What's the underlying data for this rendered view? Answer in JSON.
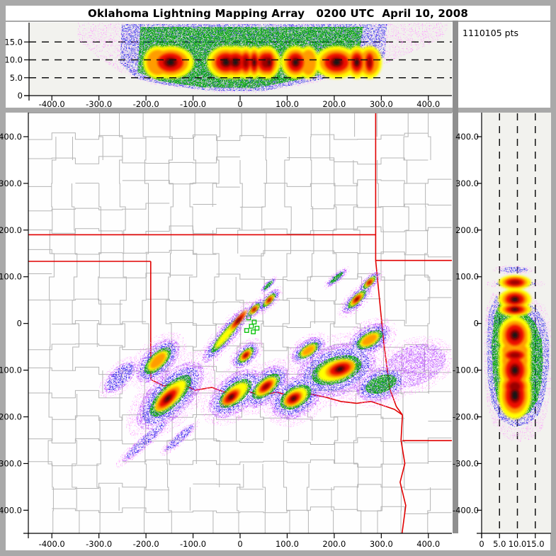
{
  "title": "Oklahoma Lightning Mapping Array   0200 UTC  April 10, 2008",
  "points_label": "1110105 pts",
  "axes": {
    "east_west_km": {
      "ticks": [
        -400,
        -300,
        -200,
        -100,
        0,
        100,
        200,
        300,
        400
      ],
      "labels": [
        "-400.0",
        "-300.0",
        "-200.0",
        "-100.0",
        "0",
        "100.0",
        "200.0",
        "300.0",
        "400.0"
      ]
    },
    "north_south_km": {
      "ticks": [
        -400,
        -300,
        -200,
        -100,
        0,
        100,
        200,
        300,
        400
      ],
      "labels": [
        "-400.0",
        "-300.0",
        "-200.0",
        "-100.0",
        "0",
        "100.0",
        "200.0",
        "300.0",
        "400.0"
      ]
    },
    "altitude_km": {
      "ticks": [
        0,
        5,
        10,
        15
      ],
      "labels": [
        "0",
        "5.0",
        "10.0",
        "15.0"
      ]
    }
  },
  "chart_data": {
    "type": "heatmap",
    "title": "Oklahoma Lightning Mapping Array   0200 UTC  April 10, 2008",
    "total_points": 1110105,
    "layout": "three linked panels: top = altitude vs east-west, main = plan view map with county and state borders, right = north-south vs altitude",
    "axis_ranges": {
      "east_west_km": [
        -450,
        450
      ],
      "north_south_km": [
        -450,
        450
      ],
      "altitude_km": [
        0,
        20
      ]
    },
    "grid": "dashed reference lines at 5, 10, 15 km altitude in cross-section panels",
    "color_scale_low_to_high": [
      "#ff9bff",
      "#b44cff",
      "#2b2bea",
      "#00a800",
      "#ffff00",
      "#ff9c00",
      "#ee1000",
      "#990000",
      "#141414"
    ],
    "colors": {
      "state_border": "#e10000",
      "county_line": "#b5b5b5",
      "station_marker": "#00c000",
      "panel_bg": "#f2f2ee",
      "map_bg": "#fefefe"
    },
    "cells_format": "[east_km, north_km, orientation_deg, length_km, width_km, intensity_1to9, core_offset_frac]",
    "cells": [
      [
        -175,
        -80,
        45,
        100,
        46,
        6,
        0
      ],
      [
        -148,
        -155,
        45,
        160,
        62,
        9,
        -0.05
      ],
      [
        -30,
        -25,
        50,
        130,
        26,
        9,
        0.32
      ],
      [
        30,
        30,
        45,
        48,
        17,
        9,
        0
      ],
      [
        62,
        50,
        48,
        52,
        18,
        9,
        0
      ],
      [
        -10,
        -150,
        40,
        115,
        55,
        9,
        -0.1
      ],
      [
        55,
        -135,
        40,
        100,
        48,
        8,
        0
      ],
      [
        118,
        -158,
        32,
        100,
        60,
        9,
        -0.05
      ],
      [
        205,
        -100,
        18,
        150,
        78,
        9,
        0.05
      ],
      [
        248,
        52,
        45,
        72,
        23,
        9,
        0
      ],
      [
        275,
        88,
        45,
        50,
        18,
        8,
        0
      ],
      [
        300,
        -130,
        20,
        95,
        50,
        4,
        0
      ],
      [
        205,
        98,
        40,
        48,
        12,
        4,
        0
      ],
      [
        60,
        82,
        45,
        36,
        10,
        4,
        0
      ],
      [
        -200,
        -250,
        42,
        115,
        16,
        3,
        0
      ],
      [
        -128,
        -245,
        42,
        75,
        14,
        3,
        0
      ],
      [
        275,
        -35,
        30,
        85,
        42,
        6,
        0
      ],
      [
        12,
        -68,
        45,
        60,
        28,
        8,
        0
      ],
      [
        -255,
        -115,
        45,
        75,
        30,
        3,
        0
      ],
      [
        370,
        -90,
        20,
        120,
        60,
        2,
        0
      ],
      [
        145,
        -58,
        35,
        70,
        32,
        6,
        0
      ]
    ],
    "state_borders_km": {
      "kansas_south": [
        [
          -450,
          190
        ],
        [
          288,
          190
        ]
      ],
      "panhandle_south": [
        [
          -450,
          133
        ],
        [
          -190,
          133
        ]
      ],
      "meridian_100w": [
        [
          -190,
          133
        ],
        [
          -190,
          -120
        ]
      ],
      "red_river": [
        [
          -190,
          -120
        ],
        [
          -162,
          -134
        ],
        [
          -128,
          -127
        ],
        [
          -96,
          -143
        ],
        [
          -60,
          -137
        ],
        [
          -28,
          -149
        ],
        [
          8,
          -142
        ],
        [
          42,
          -154
        ],
        [
          78,
          -147
        ],
        [
          112,
          -157
        ],
        [
          148,
          -151
        ],
        [
          182,
          -158
        ],
        [
          214,
          -167
        ],
        [
          248,
          -171
        ],
        [
          278,
          -167
        ],
        [
          305,
          -176
        ],
        [
          328,
          -184
        ],
        [
          345,
          -196
        ]
      ],
      "kansas_missouri": [
        [
          288,
          450
        ],
        [
          288,
          135
        ]
      ],
      "missouri_arkansas": [
        [
          288,
          135
        ],
        [
          450,
          135
        ]
      ],
      "oklahoma_arkansas": [
        [
          288,
          135
        ],
        [
          305,
          -40
        ],
        [
          318,
          -140
        ],
        [
          332,
          -178
        ],
        [
          345,
          -196
        ]
      ],
      "texas_arkansas_louisiana": [
        [
          345,
          -196
        ],
        [
          342,
          -250
        ],
        [
          350,
          -300
        ],
        [
          340,
          -340
        ],
        [
          352,
          -390
        ],
        [
          344,
          -450
        ]
      ],
      "arkansas_louisiana": [
        [
          345,
          -251
        ],
        [
          450,
          -251
        ]
      ]
    },
    "lma_stations_km": [
      [
        18,
        12
      ],
      [
        30,
        3
      ],
      [
        24,
        -6
      ],
      [
        14,
        -15
      ],
      [
        28,
        -18
      ],
      [
        36,
        -10
      ]
    ],
    "envelopes": {
      "top": {
        "pink": [
          [
            -345,
            20.3
          ],
          [
            -345,
            15.5
          ],
          [
            -300,
            10.5
          ],
          [
            -250,
            6.2
          ],
          [
            -190,
            3.2
          ],
          [
            -120,
            1.8
          ],
          [
            -40,
            0.8
          ],
          [
            40,
            0.8
          ],
          [
            120,
            2.6
          ],
          [
            200,
            4.6
          ],
          [
            260,
            6.6
          ],
          [
            320,
            9.6
          ],
          [
            380,
            13
          ],
          [
            432,
            16.2
          ],
          [
            445,
            20.3
          ]
        ],
        "blue": [
          [
            -252,
            20
          ],
          [
            -255,
            9
          ],
          [
            -218,
            4.6
          ],
          [
            -150,
            2.8
          ],
          [
            -60,
            1.3
          ],
          [
            50,
            1.3
          ],
          [
            140,
            3.6
          ],
          [
            230,
            6.2
          ],
          [
            285,
            8.2
          ],
          [
            308,
            11
          ],
          [
            312,
            20
          ]
        ],
        "green": [
          [
            -212,
            19.2
          ],
          [
            -218,
            6.6
          ],
          [
            -172,
            4.1
          ],
          [
            -80,
            2.3
          ],
          [
            30,
            2.1
          ],
          [
            120,
            4.3
          ],
          [
            205,
            6.9
          ],
          [
            248,
            8.6
          ],
          [
            262,
            19.2
          ]
        ]
      },
      "right": {
        "pink": [
          [
            3,
            66
          ],
          [
            1.2,
            30
          ],
          [
            0.6,
            -40
          ],
          [
            0.8,
            -120
          ],
          [
            1.5,
            -175
          ],
          [
            3,
            -215
          ],
          [
            6,
            -243
          ],
          [
            10,
            -255
          ],
          [
            14,
            -248
          ],
          [
            17,
            -225
          ],
          [
            18.5,
            -185
          ],
          [
            19.6,
            -120
          ],
          [
            19.8,
            -50
          ],
          [
            19.2,
            5
          ],
          [
            17.5,
            40
          ],
          [
            14,
            58
          ],
          [
            8,
            68
          ]
        ],
        "blue": [
          [
            4,
            58
          ],
          [
            2,
            25
          ],
          [
            1.4,
            -40
          ],
          [
            1.7,
            -120
          ],
          [
            2.8,
            -170
          ],
          [
            5,
            -205
          ],
          [
            9,
            -222
          ],
          [
            13,
            -215
          ],
          [
            16,
            -195
          ],
          [
            17.8,
            -150
          ],
          [
            18.8,
            -95
          ],
          [
            18.9,
            -40
          ],
          [
            17.8,
            5
          ],
          [
            15,
            35
          ],
          [
            10,
            52
          ],
          [
            6,
            56
          ]
        ],
        "green": [
          [
            5.2,
            48
          ],
          [
            3.5,
            15
          ],
          [
            2.8,
            -45
          ],
          [
            3.2,
            -120
          ],
          [
            4.5,
            -165
          ],
          [
            7,
            -192
          ],
          [
            10.5,
            -200
          ],
          [
            13.5,
            -190
          ],
          [
            15.6,
            -165
          ],
          [
            16.8,
            -125
          ],
          [
            17.2,
            -80
          ],
          [
            16.8,
            -35
          ],
          [
            15,
            0
          ],
          [
            12,
            28
          ],
          [
            8,
            42
          ]
        ],
        "streaks": [
          [
            9.5,
            85,
            5.5,
            7
          ],
          [
            9,
            115,
            4,
            6
          ]
        ]
      }
    }
  }
}
